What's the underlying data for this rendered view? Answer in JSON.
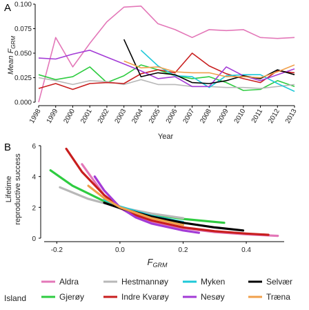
{
  "chart_data": [
    {
      "panel": "A",
      "type": "line",
      "xlabel": "Year",
      "ylabel_main": "Mean F",
      "ylabel_sub": "GRM",
      "x_ticks": [
        "1998",
        "1999",
        "2000",
        "2001",
        "2002",
        "2003",
        "2004",
        "2005",
        "2006",
        "2007",
        "2008",
        "2009",
        "2010",
        "2011",
        "2012",
        "2013"
      ],
      "y_ticks": [
        "0.000",
        "0.025",
        "0.050",
        "0.075",
        "0.100"
      ],
      "xlim": [
        1998,
        2013
      ],
      "ylim": [
        0,
        0.1
      ],
      "grid": false,
      "series": [
        {
          "name": "Aldra",
          "color": "#e377b8",
          "x": [
            1998,
            1999,
            2000,
            2001,
            2002,
            2003,
            2004,
            2005,
            2006,
            2007,
            2008,
            2009,
            2010,
            2011,
            2012,
            2013
          ],
          "y": [
            0.0,
            0.066,
            0.036,
            0.06,
            0.082,
            0.097,
            0.098,
            0.08,
            0.074,
            0.066,
            0.074,
            0.073,
            0.074,
            0.066,
            0.065,
            0.066
          ]
        },
        {
          "name": "Gjerøy",
          "color": "#2ecc40",
          "x": [
            1998,
            1999,
            2000,
            2001,
            2002,
            2003,
            2004,
            2005,
            2006,
            2007,
            2008,
            2009,
            2010,
            2011,
            2012,
            2013
          ],
          "y": [
            0.028,
            0.023,
            0.026,
            0.036,
            0.02,
            0.027,
            0.038,
            0.033,
            0.027,
            0.024,
            0.026,
            0.02,
            0.012,
            0.013,
            0.022,
            0.016
          ]
        },
        {
          "name": "Hestmannøy",
          "color": "#b8b8b8",
          "x": [
            1998,
            1999,
            2000,
            2001,
            2002,
            2003,
            2004,
            2005,
            2006,
            2007,
            2008,
            2009,
            2010,
            2011,
            2012,
            2013
          ],
          "y": [
            0.025,
            0.022,
            0.018,
            0.022,
            0.021,
            0.018,
            0.023,
            0.018,
            0.018,
            0.016,
            0.016,
            0.015,
            0.015,
            0.014,
            0.016,
            0.018
          ]
        },
        {
          "name": "Indre Kvarøy",
          "color": "#c81e1e",
          "x": [
            1998,
            1999,
            2000,
            2001,
            2002,
            2003,
            2004,
            2005,
            2006,
            2007,
            2008,
            2009,
            2010,
            2011,
            2012,
            2013
          ],
          "y": [
            0.014,
            0.019,
            0.013,
            0.019,
            0.02,
            0.019,
            0.029,
            0.033,
            0.03,
            0.05,
            0.037,
            0.029,
            0.024,
            0.02,
            0.032,
            0.03
          ]
        },
        {
          "name": "Myken",
          "color": "#1ec8d8",
          "x": [
            2004,
            2005,
            2006,
            2007,
            2008,
            2009,
            2010,
            2011,
            2012,
            2013
          ],
          "y": [
            0.053,
            0.037,
            0.027,
            0.026,
            0.015,
            0.027,
            0.028,
            0.028,
            0.019,
            0.011
          ]
        },
        {
          "name": "Nesøy",
          "color": "#a33bd6",
          "x": [
            1998,
            1999,
            2000,
            2001,
            2002,
            2003,
            2004,
            2005,
            2006,
            2007,
            2008,
            2009,
            2010,
            2011,
            2012,
            2013
          ],
          "y": [
            0.045,
            0.044,
            0.049,
            0.053,
            0.046,
            0.039,
            0.032,
            0.024,
            0.026,
            0.016,
            0.016,
            0.036,
            0.027,
            0.022,
            0.028,
            0.034
          ]
        },
        {
          "name": "Selvær",
          "color": "#000000",
          "x": [
            2003,
            2004,
            2005,
            2006,
            2007,
            2008,
            2009,
            2010,
            2011,
            2012,
            2013
          ],
          "y": [
            0.064,
            0.026,
            0.03,
            0.028,
            0.02,
            0.019,
            0.022,
            0.027,
            0.024,
            0.033,
            0.028
          ]
        },
        {
          "name": "Træna",
          "color": "#f0a04b",
          "x": [
            2003,
            2004,
            2005,
            2006,
            2007,
            2008,
            2009,
            2010,
            2011,
            2012,
            2013
          ],
          "y": [
            0.042,
            0.035,
            0.036,
            0.031,
            0.03,
            0.03,
            0.026,
            0.026,
            0.025,
            0.031,
            0.038
          ]
        }
      ]
    },
    {
      "panel": "B",
      "type": "line",
      "xlabel_main": "F",
      "xlabel_sub": "GRM",
      "ylabel_line1": "Lifetime",
      "ylabel_line2": "reproductive success",
      "x_ticks": [
        "-0.2",
        "0.0",
        "0.2",
        "0.4"
      ],
      "y_ticks": [
        "0",
        "2",
        "4",
        "6"
      ],
      "xlim": [
        -0.24,
        0.52
      ],
      "ylim": [
        0,
        6
      ],
      "grid": false,
      "series": [
        {
          "name": "Aldra",
          "color": "#e377b8",
          "x": [
            -0.12,
            -0.05,
            0.0,
            0.05,
            0.1,
            0.2,
            0.3,
            0.4,
            0.5
          ],
          "y": [
            4.8,
            2.8,
            1.95,
            1.4,
            1.05,
            0.65,
            0.4,
            0.25,
            0.15
          ]
        },
        {
          "name": "Gjerøy",
          "color": "#2ecc40",
          "x": [
            -0.22,
            -0.15,
            -0.1,
            -0.05,
            0.0,
            0.05,
            0.1,
            0.2,
            0.33
          ],
          "y": [
            4.4,
            3.4,
            2.9,
            2.4,
            2.0,
            1.75,
            1.55,
            1.25,
            1.0
          ]
        },
        {
          "name": "Hestmannøy",
          "color": "#b8b8b8",
          "x": [
            -0.19,
            -0.1,
            0.0,
            0.1,
            0.2
          ],
          "y": [
            3.3,
            2.55,
            2.0,
            1.6,
            1.3
          ]
        },
        {
          "name": "Indre Kvarøy",
          "color": "#c81e1e",
          "x": [
            -0.17,
            -0.12,
            -0.05,
            0.0,
            0.05,
            0.1,
            0.2,
            0.3,
            0.4,
            0.47
          ],
          "y": [
            5.8,
            4.3,
            2.8,
            2.0,
            1.5,
            1.15,
            0.7,
            0.45,
            0.3,
            0.22
          ]
        },
        {
          "name": "Myken",
          "color": "#1ec8d8",
          "x": [
            -0.05,
            0.0,
            0.1,
            0.2
          ],
          "y": [
            2.5,
            2.05,
            1.45,
            1.05
          ]
        },
        {
          "name": "Nesøy",
          "color": "#a33bd6",
          "x": [
            -0.08,
            -0.05,
            0.0,
            0.05,
            0.1,
            0.2,
            0.25
          ],
          "y": [
            4.0,
            3.1,
            2.0,
            1.35,
            0.95,
            0.5,
            0.35
          ]
        },
        {
          "name": "Selvær",
          "color": "#000000",
          "x": [
            -0.05,
            0.0,
            0.1,
            0.2,
            0.3,
            0.39
          ],
          "y": [
            2.3,
            1.95,
            1.4,
            1.0,
            0.7,
            0.5
          ]
        },
        {
          "name": "Træna",
          "color": "#f0a04b",
          "x": [
            -0.1,
            -0.05,
            0.0,
            0.1,
            0.2
          ],
          "y": [
            3.4,
            2.6,
            2.0,
            1.3,
            0.85
          ]
        }
      ]
    }
  ],
  "legend": {
    "title": "Island",
    "items": [
      {
        "name": "Aldra",
        "color": "#e377b8"
      },
      {
        "name": "Gjerøy",
        "color": "#2ecc40"
      },
      {
        "name": "Hestmannøy",
        "color": "#b8b8b8"
      },
      {
        "name": "Indre Kvarøy",
        "color": "#c81e1e"
      },
      {
        "name": "Myken",
        "color": "#1ec8d8"
      },
      {
        "name": "Nesøy",
        "color": "#a33bd6"
      },
      {
        "name": "Selvær",
        "color": "#000000"
      },
      {
        "name": "Træna",
        "color": "#f0a04b"
      }
    ]
  }
}
